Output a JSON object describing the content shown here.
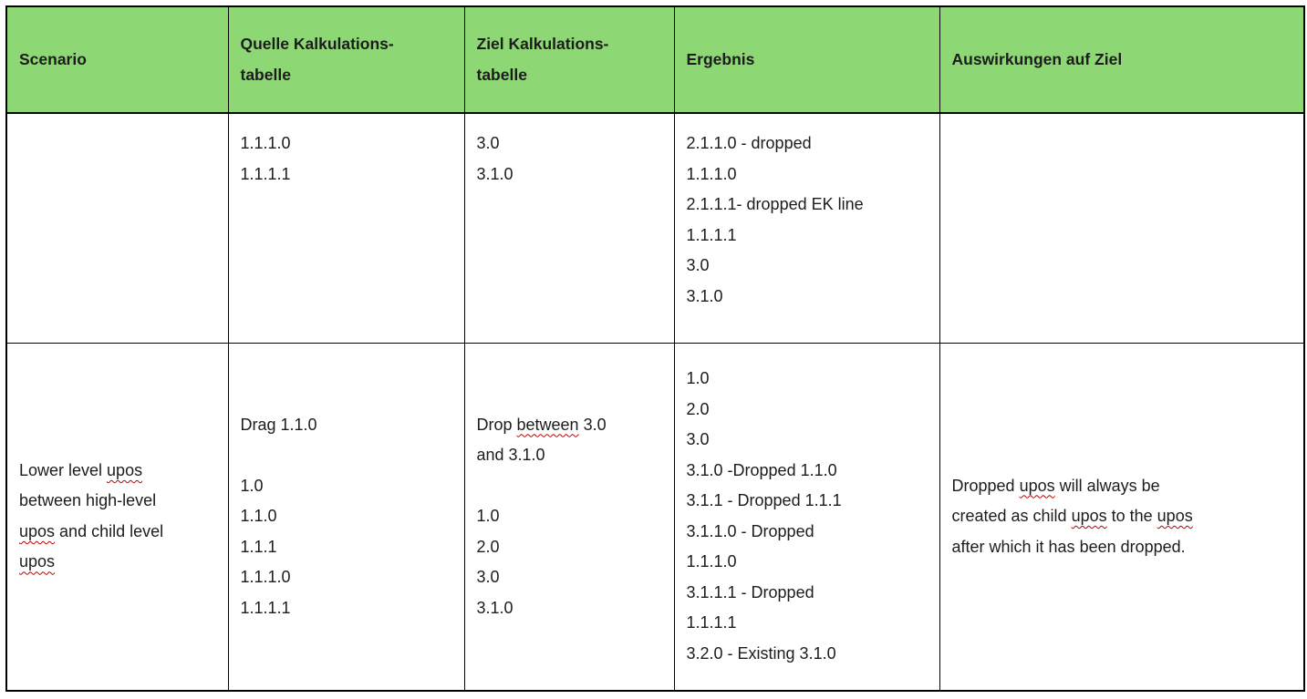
{
  "document": {
    "background": "#ffffff",
    "header_bg": "#8dd874",
    "border_color": "#000000",
    "text_color": "#1c1c1c",
    "spellcheck_color": "#c00000"
  },
  "table": {
    "columns": [
      {
        "id": "scenario",
        "label_lines": [
          "Scenario"
        ]
      },
      {
        "id": "quelle",
        "label_lines": [
          "Quelle Kalkulations-",
          "tabelle"
        ]
      },
      {
        "id": "ziel",
        "label_lines": [
          "Ziel Kalkulations-",
          "tabelle"
        ]
      },
      {
        "id": "ergebnis",
        "label_lines": [
          "Ergebnis"
        ]
      },
      {
        "id": "auswirkungen",
        "label_lines": [
          "Auswirkungen auf Ziel"
        ]
      }
    ],
    "rows": [
      {
        "id": "row-1",
        "valign": "top",
        "cells": [
          {
            "lines": []
          },
          {
            "lines": [
              "1.1.1.0",
              "1.1.1.1"
            ]
          },
          {
            "lines": [
              "3.0",
              "3.1.0"
            ]
          },
          {
            "lines": [
              "2.1.1.0 - dropped",
              "1.1.1.0",
              "2.1.1.1- dropped EK line",
              "1.1.1.1",
              "3.0",
              "3.1.0"
            ]
          },
          {
            "lines": []
          }
        ]
      },
      {
        "id": "row-2",
        "valign": "middle",
        "cells": [
          {
            "lines": [
              [
                {
                  "text": "Lower level "
                },
                {
                  "text": "upos",
                  "wavy": true
                }
              ],
              "between high-level",
              [
                {
                  "text": "upos",
                  "wavy": true
                },
                {
                  "text": " and child level"
                }
              ],
              [
                {
                  "text": "upos",
                  "wavy": true
                }
              ]
            ]
          },
          {
            "lines": [
              "Drag 1.1.0",
              "",
              "1.0",
              "1.1.0",
              "1.1.1",
              "1.1.1.0",
              "1.1.1.1"
            ]
          },
          {
            "lines": [
              [
                {
                  "text": "Drop "
                },
                {
                  "text": "between",
                  "wavy": true
                },
                {
                  "text": " 3.0"
                }
              ],
              "and 3.1.0",
              "",
              "1.0",
              "2.0",
              "3.0",
              "3.1.0"
            ]
          },
          {
            "lines": [
              "1.0",
              "2.0",
              "3.0",
              "3.1.0 -Dropped 1.1.0",
              "3.1.1 - Dropped 1.1.1",
              "3.1.1.0 - Dropped",
              "1.1.1.0",
              "3.1.1.1 - Dropped",
              "1.1.1.1",
              "3.2.0 - Existing 3.1.0"
            ]
          },
          {
            "lines": [
              [
                {
                  "text": "Dropped "
                },
                {
                  "text": "upos",
                  "wavy": true
                },
                {
                  "text": " will always be"
                }
              ],
              [
                {
                  "text": "created as child "
                },
                {
                  "text": "upos",
                  "wavy": true
                },
                {
                  "text": " to the "
                },
                {
                  "text": "upos",
                  "wavy": true
                }
              ],
              "after which it has been dropped."
            ]
          }
        ]
      }
    ]
  }
}
